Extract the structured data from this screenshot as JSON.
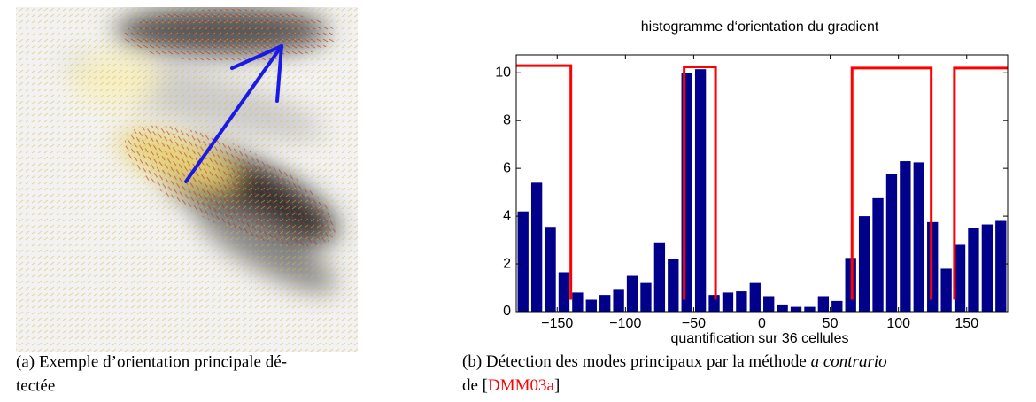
{
  "figure_a": {
    "caption": [
      "(a) Exemple d’orientation principale dé-",
      "tectée"
    ]
  },
  "figure_b": {
    "caption": [
      [
        "(b) Détection des modes principaux par la méthode ",
        "a contrario"
      ],
      [
        "de [",
        "DMM03a",
        "]"
      ]
    ]
  },
  "chart_data": {
    "type": "histogram",
    "title": "histogramme d‘orientation du gradient",
    "x_label": "quantification sur 36 cellules",
    "bins": [
      -180,
      -170,
      -160,
      -150,
      -140,
      -130,
      -120,
      -110,
      -100,
      -90,
      -80,
      -70,
      -60,
      -50,
      -40,
      -30,
      -20,
      -10,
      0,
      10,
      20,
      30,
      40,
      50,
      60,
      70,
      80,
      90,
      100,
      110,
      120,
      130,
      140,
      150,
      160,
      170,
      180
    ],
    "values": [
      4.2,
      5.4,
      3.55,
      1.65,
      0.8,
      0.5,
      0.7,
      0.95,
      1.5,
      1.2,
      2.9,
      2.2,
      10.0,
      10.15,
      0.7,
      0.8,
      0.85,
      1.2,
      0.65,
      0.3,
      0.2,
      0.2,
      0.65,
      0.45,
      2.25,
      4.0,
      4.75,
      5.75,
      6.3,
      6.25,
      3.75,
      1.8,
      2.8,
      3.5,
      3.65,
      3.8
    ],
    "color": "#00008b",
    "overlay": {
      "color": "#ff0000",
      "x": [
        -180,
        -140,
        -140,
        null,
        -57,
        -57,
        -34,
        -34,
        null,
        66,
        66,
        124,
        124,
        null,
        141,
        141,
        180
      ],
      "values": [
        10.3,
        10.3,
        0.5,
        null,
        0.5,
        10.25,
        10.25,
        0.5,
        null,
        0.5,
        10.2,
        10.2,
        0.5,
        null,
        0.5,
        10.2,
        10.2
      ]
    },
    "xlim": [
      -180,
      180
    ],
    "ylim": [
      0,
      10.75
    ],
    "xticks": [
      {
        "value": -150,
        "label": "−150"
      },
      {
        "value": -100,
        "label": "−100"
      },
      {
        "value": -50,
        "label": "−50"
      },
      0,
      50,
      100,
      150
    ],
    "yticks": [
      0,
      2,
      4,
      6,
      8,
      10
    ]
  }
}
